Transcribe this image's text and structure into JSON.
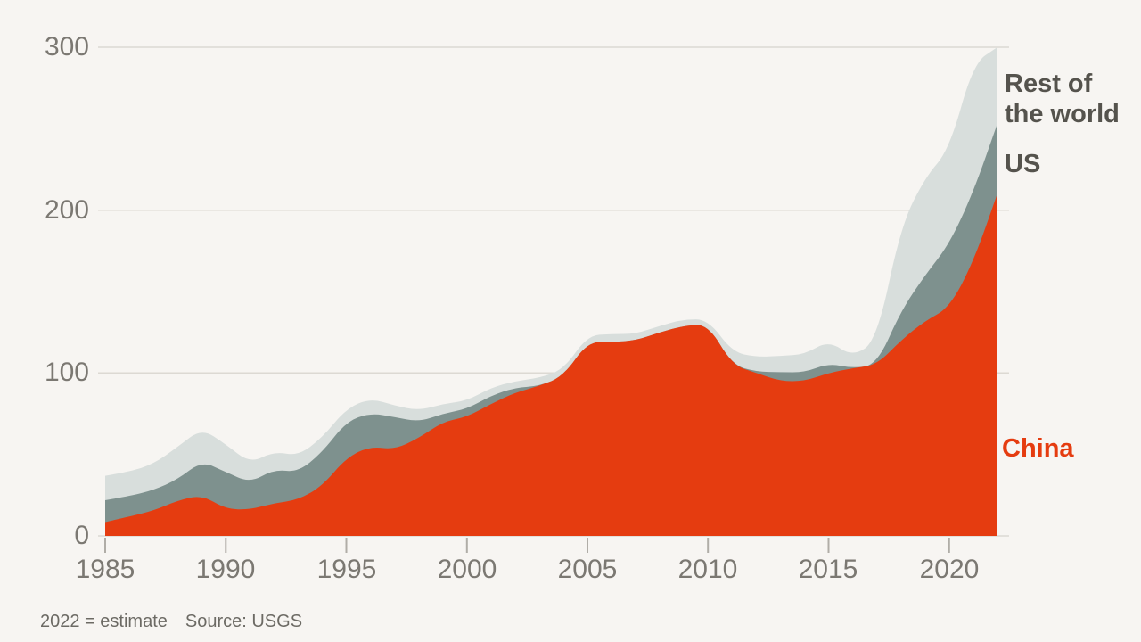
{
  "page": {
    "background": "#f7f5f2"
  },
  "chart_data": {
    "type": "area",
    "stacked": true,
    "title": "",
    "xlabel": "",
    "ylabel": "",
    "x": [
      1985,
      1986,
      1987,
      1988,
      1989,
      1990,
      1991,
      1992,
      1993,
      1994,
      1995,
      1996,
      1997,
      1998,
      1999,
      2000,
      2001,
      2002,
      2003,
      2004,
      2005,
      2006,
      2007,
      2008,
      2009,
      2010,
      2011,
      2012,
      2013,
      2014,
      2015,
      2016,
      2017,
      2018,
      2019,
      2020,
      2021,
      2022
    ],
    "series": [
      {
        "name": "China",
        "color": "#e53c10",
        "values": [
          8.5,
          11.9,
          15.5,
          21.6,
          25.2,
          16.5,
          16.1,
          20.1,
          22.1,
          30.6,
          48,
          55,
          53,
          60,
          70,
          73,
          81,
          88,
          92,
          98,
          119,
          119,
          120,
          125,
          129,
          130,
          105,
          100,
          95,
          95,
          100,
          103,
          105,
          120,
          132,
          140,
          168,
          210
        ]
      },
      {
        "name": "US",
        "color": "#7e918e",
        "values": [
          13.4,
          12.5,
          12.6,
          13,
          20.8,
          22.7,
          16.5,
          20.7,
          17,
          20.7,
          22.2,
          20.4,
          20,
          10,
          5,
          5,
          5,
          3,
          0,
          0,
          0,
          0,
          0,
          0,
          0,
          0,
          0,
          0.8,
          5.5,
          5.4,
          5.9,
          0,
          0,
          18,
          28,
          39,
          43,
          43
        ]
      },
      {
        "name": "Rest of the world",
        "color": "#d8dedc",
        "values": [
          15,
          15,
          16,
          20,
          20,
          17,
          12,
          11,
          10,
          9,
          8,
          9,
          7,
          7,
          6,
          5,
          5,
          4,
          5,
          4,
          4,
          5,
          4,
          4,
          4,
          3,
          8,
          9,
          10,
          11,
          14,
          7,
          15,
          52,
          60,
          58,
          79,
          47
        ]
      }
    ],
    "ylim": [
      0,
      300
    ],
    "yticks": [
      0,
      100,
      200,
      300
    ],
    "xticks": [
      1985,
      1990,
      1995,
      2000,
      2005,
      2010,
      2015,
      2020
    ],
    "grid": "horizontal",
    "grid_color": "#dcd9d3",
    "tick_color": "#b0ada7",
    "legend_position": "right-annotations",
    "annotations": {
      "rest_of_world": "Rest of the world",
      "us": "US",
      "china": "China"
    },
    "annotation_colors": {
      "rest_of_world": "#55534d",
      "us": "#55534d",
      "china": "#e53c10"
    },
    "footnote": "2022 = estimate",
    "source": "Source: USGS"
  }
}
